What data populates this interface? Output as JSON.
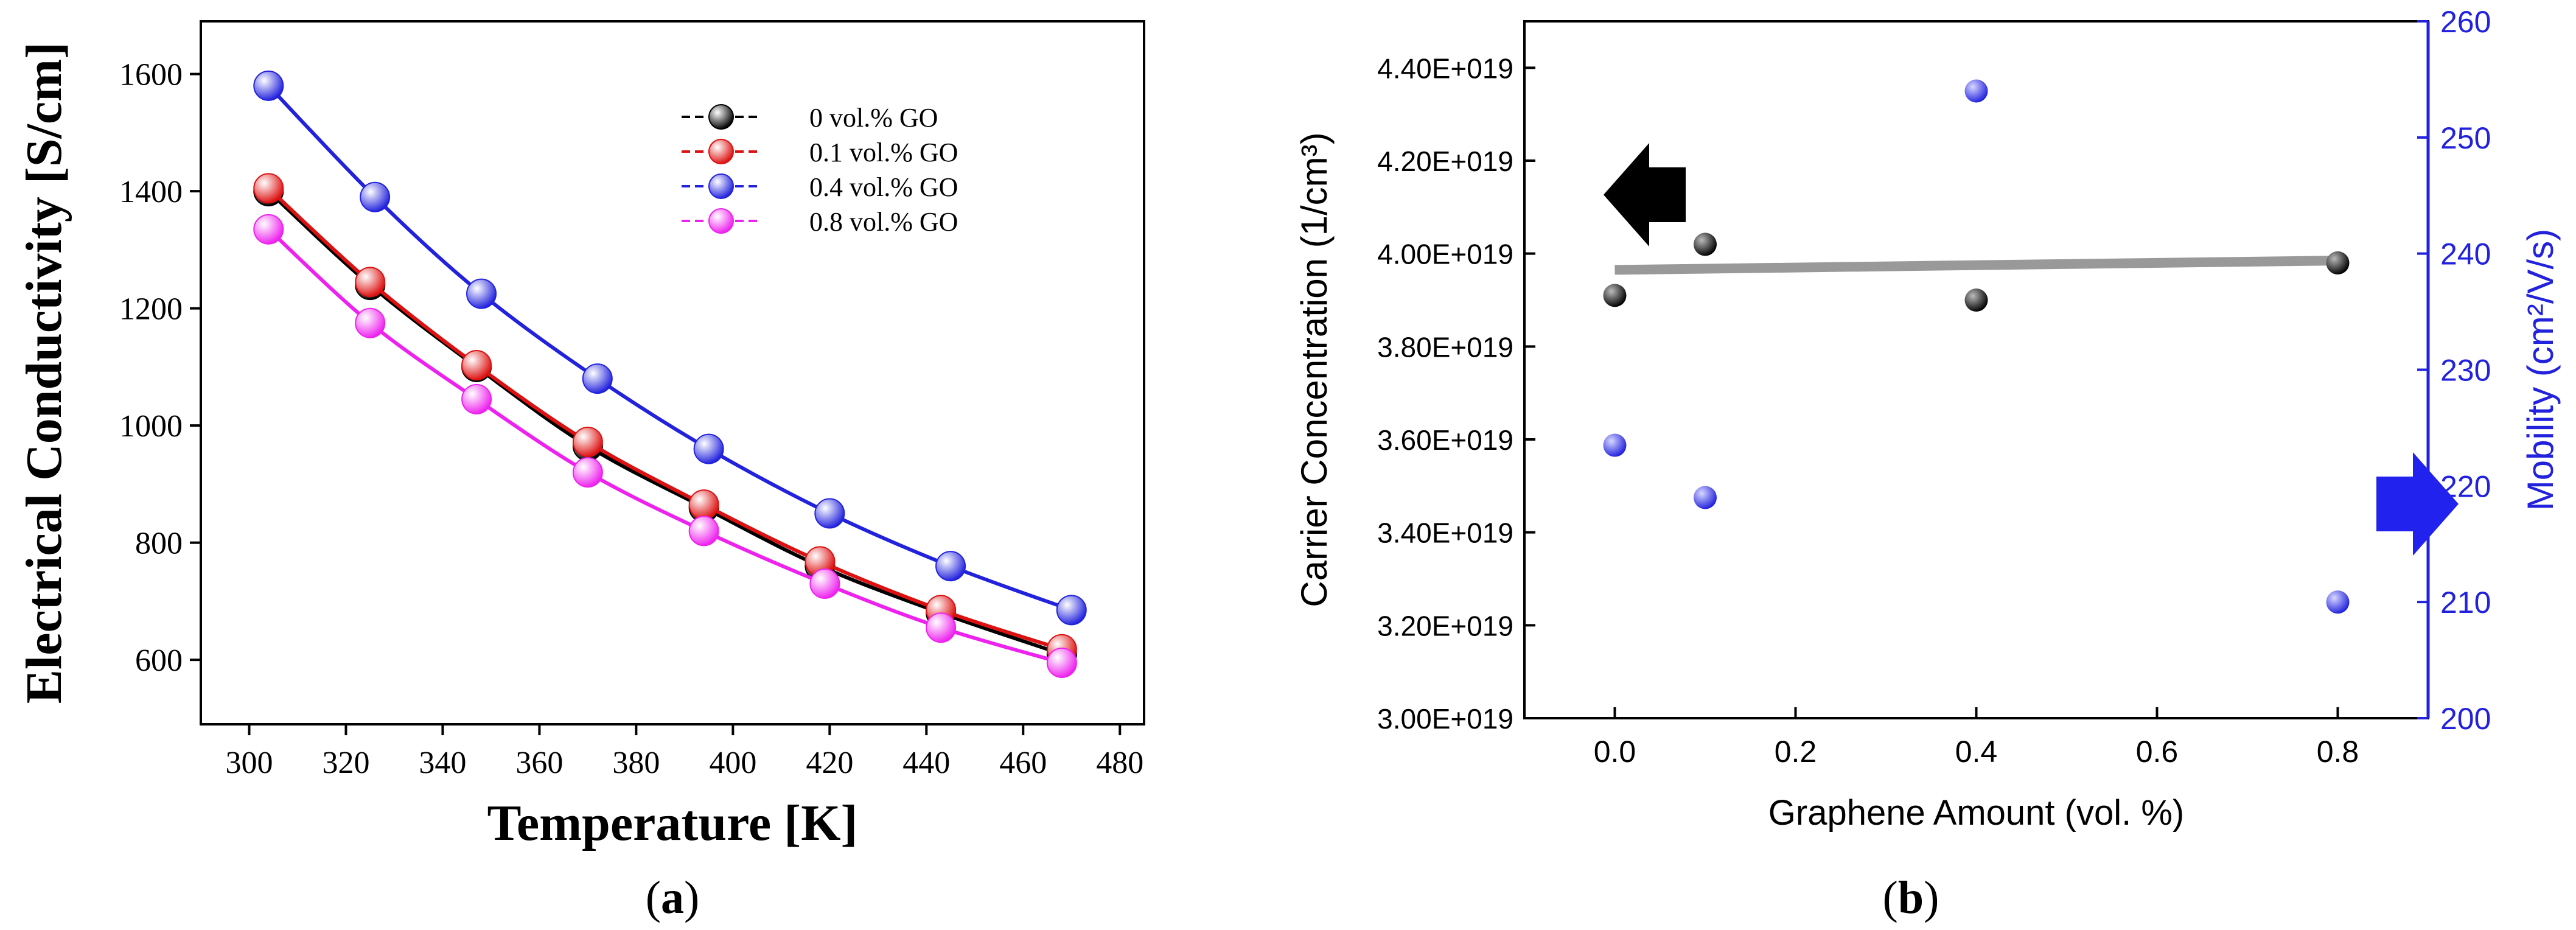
{
  "chart_data": [
    {
      "panel": "a",
      "type": "line",
      "caption_open": "(",
      "caption_letter": "a",
      "caption_close": ")",
      "xlabel": "Temperature [K]",
      "ylabel": "Electrical Conductivity [S/cm]",
      "xlim": [
        290,
        485
      ],
      "ylim": [
        490,
        1690
      ],
      "xticks": [
        300,
        320,
        340,
        360,
        380,
        400,
        420,
        440,
        460,
        480
      ],
      "yticks": [
        600,
        800,
        1000,
        1200,
        1400,
        1600
      ],
      "legend_position": "top-right",
      "series": [
        {
          "name": "0    vol.%   GO",
          "color": "#000000",
          "x": [
            304,
            325,
            347,
            370,
            394,
            418,
            443,
            468
          ],
          "y": [
            1400,
            1240,
            1100,
            965,
            860,
            760,
            680,
            610
          ]
        },
        {
          "name": "0.1  vol.%  GO",
          "color": "#dd1111",
          "x": [
            304,
            325,
            347,
            370,
            394,
            418,
            443,
            468
          ],
          "y": [
            1405,
            1245,
            1103,
            972,
            865,
            768,
            685,
            618
          ]
        },
        {
          "name": "0.4  vol.%  GO",
          "color": "#2222dd",
          "x": [
            304,
            326,
            348,
            372,
            395,
            420,
            445,
            470
          ],
          "y": [
            1580,
            1390,
            1225,
            1080,
            960,
            850,
            760,
            685
          ]
        },
        {
          "name": "0.8  vol.%  GO",
          "color": "#ee22ee",
          "x": [
            304,
            325,
            347,
            370,
            394,
            419,
            443,
            468
          ],
          "y": [
            1335,
            1175,
            1045,
            920,
            820,
            730,
            655,
            595
          ]
        }
      ]
    },
    {
      "panel": "b",
      "type": "scatter",
      "caption_open": "(",
      "caption_letter": "b",
      "caption_close": ")",
      "xlabel": "Graphene Amount (vol. %)",
      "ylabel_left": "Carrier Concentration (1/cm³)",
      "ylabel_right": "Mobility (cm²/V/s)",
      "xlim": [
        -0.1,
        0.9
      ],
      "ylim_left": [
        3e+19,
        4.5e+19
      ],
      "ylim_right": [
        200,
        260
      ],
      "xticks": [
        "0.0",
        "0.2",
        "0.4",
        "0.6",
        "0.8"
      ],
      "xtick_values": [
        0.0,
        0.2,
        0.4,
        0.6,
        0.8
      ],
      "yticks_left": [
        "3.00E+019",
        "3.20E+019",
        "3.40E+019",
        "3.60E+019",
        "3.80E+019",
        "4.00E+019",
        "4.20E+019",
        "4.40E+019"
      ],
      "ytick_left_values": [
        3e+19,
        3.2e+19,
        3.4e+19,
        3.6e+19,
        3.8e+19,
        4e+19,
        4.2e+19,
        4.4e+19
      ],
      "yticks_right": [
        "200",
        "210",
        "220",
        "230",
        "240",
        "250",
        "260"
      ],
      "ytick_right_values": [
        200,
        210,
        220,
        230,
        240,
        250,
        260
      ],
      "carrier_concentration": {
        "color": "#000000",
        "x": [
          0.0,
          0.1,
          0.4,
          0.8
        ],
        "y": [
          3.91e+19,
          4.02e+19,
          3.9e+19,
          3.98e+19
        ]
      },
      "mobility": {
        "color": "#2222dd",
        "x": [
          0.0,
          0.1,
          0.4,
          0.8
        ],
        "y": [
          223.5,
          219,
          254,
          210
        ]
      },
      "trend_line": {
        "color": "#999999",
        "x": [
          0.0,
          0.8
        ],
        "y": [
          3.965e+19,
          3.985e+19
        ]
      },
      "arrow_left_color": "#000000",
      "arrow_right_color": "#2222ee"
    }
  ]
}
